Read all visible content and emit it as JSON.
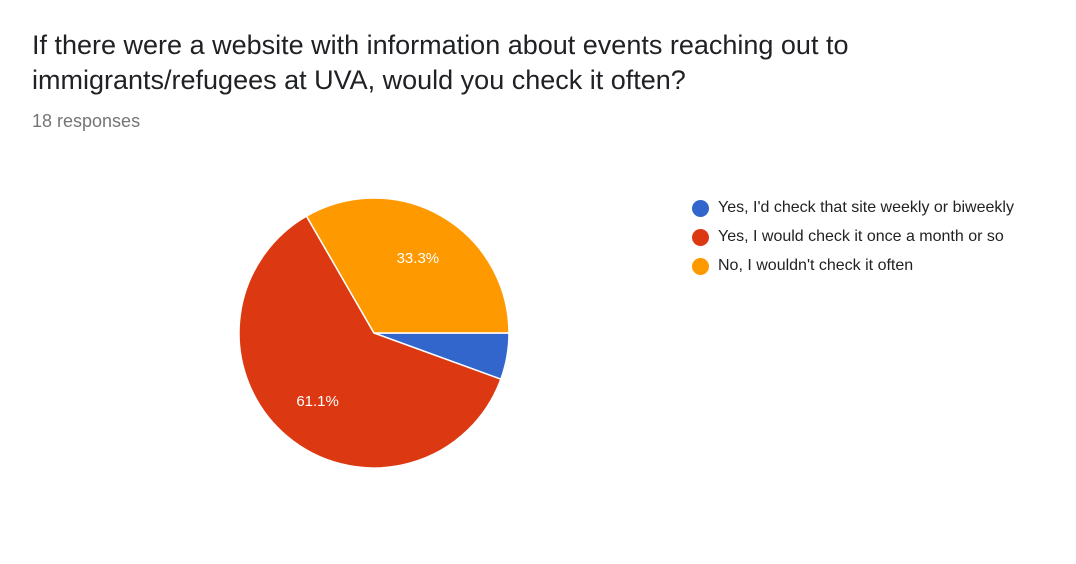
{
  "header": {
    "question": "If there were a website with information about events reaching out to immigrants/refugees at UVA, would you check it often?",
    "responses": "18 responses"
  },
  "chart_data": {
    "type": "pie",
    "title": "If there were a website with information about events reaching out to immigrants/refugees at UVA, would you check it often?",
    "subtitle": "18 responses",
    "total": 18,
    "legend_position": "right",
    "slices": [
      {
        "label": "Yes, I'd check that site weekly or biweekly",
        "count": 1,
        "percent": 5.6,
        "percent_label": "",
        "color": "#3366cc"
      },
      {
        "label": "Yes, I would check it once a month or so",
        "count": 11,
        "percent": 61.1,
        "percent_label": "61.1%",
        "color": "#dc3912"
      },
      {
        "label": "No, I wouldn't check it often",
        "count": 6,
        "percent": 33.3,
        "percent_label": "33.3%",
        "color": "#ff9900"
      }
    ]
  }
}
